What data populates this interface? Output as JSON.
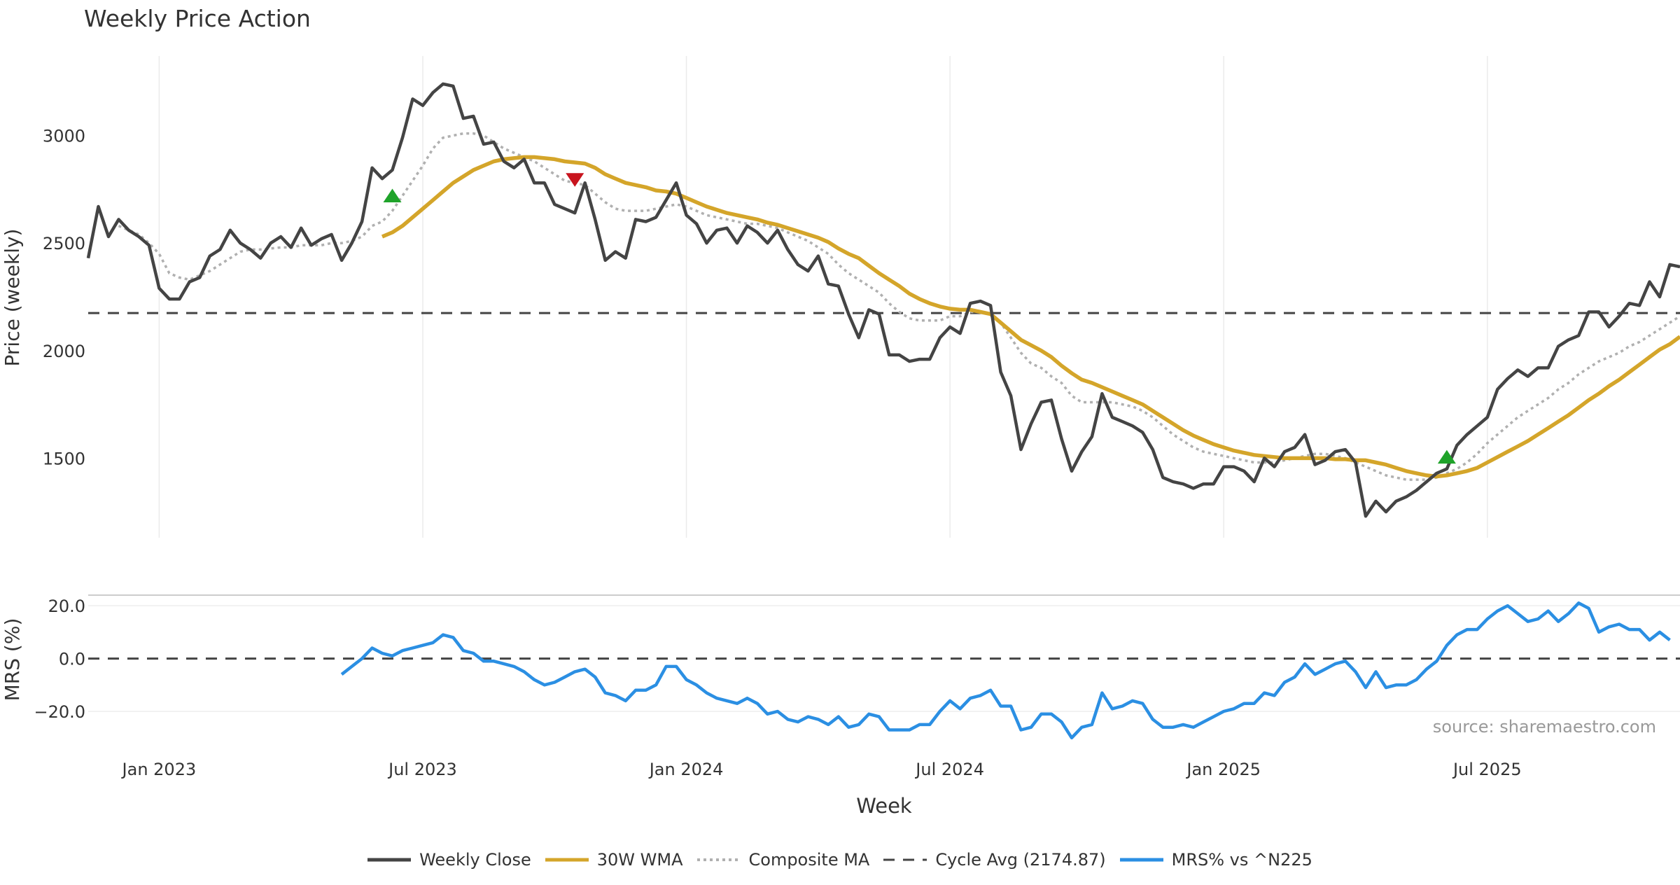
{
  "chart_data": [
    {
      "type": "line",
      "title": "Weekly Price Action",
      "xlabel": "",
      "ylabel": "Price (weekly)",
      "ylim": [
        1130,
        3370
      ],
      "yticks": [
        1500,
        2000,
        2500,
        3000
      ],
      "x_start": "2022-11-14",
      "x_step_days": 7,
      "grid": true,
      "series": [
        {
          "name": "Weekly Close",
          "color": "#444444",
          "style": "solid",
          "values": [
            2430,
            2670,
            2530,
            2610,
            2560,
            2530,
            2490,
            2290,
            2240,
            2240,
            2320,
            2340,
            2440,
            2470,
            2560,
            2500,
            2470,
            2430,
            2500,
            2530,
            2480,
            2570,
            2490,
            2520,
            2540,
            2420,
            2500,
            2600,
            2850,
            2800,
            2840,
            2990,
            3170,
            3140,
            3200,
            3240,
            3230,
            3080,
            3090,
            2960,
            2970,
            2880,
            2850,
            2890,
            2780,
            2780,
            2680,
            2660,
            2640,
            2780,
            2610,
            2420,
            2460,
            2430,
            2610,
            2600,
            2620,
            2700,
            2780,
            2630,
            2590,
            2500,
            2560,
            2570,
            2500,
            2580,
            2550,
            2500,
            2560,
            2470,
            2400,
            2370,
            2440,
            2310,
            2300,
            2170,
            2060,
            2190,
            2170,
            1980,
            1980,
            1950,
            1960,
            1960,
            2060,
            2110,
            2080,
            2220,
            2230,
            2210,
            1900,
            1790,
            1540,
            1660,
            1760,
            1770,
            1590,
            1440,
            1530,
            1600,
            1800,
            1690,
            1670,
            1650,
            1620,
            1540,
            1410,
            1390,
            1380,
            1360,
            1380,
            1380,
            1460,
            1460,
            1440,
            1390,
            1500,
            1460,
            1530,
            1550,
            1610,
            1470,
            1490,
            1530,
            1540,
            1480,
            1230,
            1300,
            1250,
            1300,
            1320,
            1350,
            1390,
            1430,
            1450,
            1560,
            1610,
            1650,
            1690,
            1820,
            1870,
            1910,
            1880,
            1920,
            1920,
            2020,
            2050,
            2070,
            2180,
            2180,
            2110,
            2160,
            2220,
            2210,
            2320,
            2250,
            2400,
            2390
          ]
        },
        {
          "name": "30W WMA",
          "color": "#d4a52a",
          "style": "solid",
          "values": [
            null,
            null,
            null,
            null,
            null,
            null,
            null,
            null,
            null,
            null,
            null,
            null,
            null,
            null,
            null,
            null,
            null,
            null,
            null,
            null,
            null,
            null,
            null,
            null,
            null,
            null,
            null,
            null,
            null,
            2530,
            2550,
            2580,
            2620,
            2660,
            2700,
            2740,
            2780,
            2810,
            2840,
            2860,
            2880,
            2890,
            2895,
            2900,
            2900,
            2895,
            2890,
            2880,
            2875,
            2870,
            2850,
            2820,
            2800,
            2780,
            2770,
            2760,
            2745,
            2740,
            2730,
            2710,
            2690,
            2670,
            2655,
            2640,
            2630,
            2620,
            2610,
            2595,
            2585,
            2570,
            2555,
            2540,
            2525,
            2505,
            2475,
            2450,
            2430,
            2395,
            2360,
            2330,
            2300,
            2265,
            2240,
            2220,
            2205,
            2195,
            2190,
            2190,
            2180,
            2170,
            2130,
            2090,
            2050,
            2025,
            2000,
            1970,
            1930,
            1895,
            1865,
            1850,
            1830,
            1810,
            1790,
            1770,
            1750,
            1720,
            1690,
            1660,
            1630,
            1605,
            1585,
            1565,
            1550,
            1535,
            1525,
            1515,
            1510,
            1505,
            1500,
            1500,
            1500,
            1500,
            1500,
            1495,
            1495,
            1490,
            1490,
            1480,
            1470,
            1455,
            1440,
            1430,
            1420,
            1415,
            1420,
            1430,
            1440,
            1455,
            1480,
            1505,
            1530,
            1555,
            1580,
            1610,
            1640,
            1670,
            1700,
            1735,
            1770,
            1800,
            1835,
            1865,
            1900,
            1935,
            1970,
            2005,
            2030,
            2065
          ]
        },
        {
          "name": "Composite MA",
          "color": "#b0b0b0",
          "style": "dotted",
          "values": [
            null,
            null,
            null,
            2580,
            2560,
            2540,
            2500,
            2450,
            2360,
            2340,
            2330,
            2350,
            2370,
            2400,
            2430,
            2460,
            2470,
            2470,
            2475,
            2480,
            2480,
            2490,
            2490,
            2490,
            2500,
            2500,
            2510,
            2530,
            2580,
            2600,
            2650,
            2720,
            2790,
            2860,
            2940,
            2990,
            3000,
            3010,
            3010,
            3000,
            2970,
            2940,
            2920,
            2900,
            2880,
            2850,
            2820,
            2790,
            2780,
            2770,
            2730,
            2690,
            2660,
            2650,
            2650,
            2650,
            2660,
            2670,
            2680,
            2670,
            2650,
            2630,
            2620,
            2610,
            2600,
            2590,
            2590,
            2580,
            2570,
            2550,
            2530,
            2510,
            2480,
            2450,
            2400,
            2360,
            2330,
            2300,
            2270,
            2220,
            2180,
            2150,
            2140,
            2140,
            2140,
            2160,
            2160,
            2180,
            2180,
            2170,
            2130,
            2060,
            1990,
            1940,
            1920,
            1880,
            1850,
            1790,
            1760,
            1760,
            1760,
            1760,
            1750,
            1740,
            1720,
            1690,
            1650,
            1610,
            1580,
            1550,
            1530,
            1520,
            1510,
            1500,
            1490,
            1480,
            1480,
            1480,
            1490,
            1500,
            1510,
            1520,
            1520,
            1510,
            1500,
            1480,
            1460,
            1440,
            1420,
            1410,
            1400,
            1400,
            1400,
            1410,
            1430,
            1450,
            1480,
            1520,
            1570,
            1610,
            1650,
            1690,
            1720,
            1750,
            1780,
            1820,
            1850,
            1890,
            1920,
            1950,
            1970,
            1990,
            2020,
            2040,
            2070,
            2100,
            2130,
            2160
          ]
        },
        {
          "name": "Cycle Avg (2174.87)",
          "color": "#444444",
          "style": "dashed",
          "constant": 2174.87
        }
      ],
      "markers": [
        {
          "type": "buy",
          "index": 30,
          "value": 2715,
          "color": "#1fa32a"
        },
        {
          "type": "sell",
          "index": 48,
          "value": 2800,
          "color": "#c8141e"
        },
        {
          "type": "buy",
          "index": 134,
          "value": 1500,
          "color": "#1fa32a"
        }
      ]
    },
    {
      "type": "line",
      "title": "",
      "xlabel": "Week",
      "ylabel": "MRS (%)",
      "ylim": [
        -29,
        24
      ],
      "yticks": [
        -20.0,
        0.0,
        20.0
      ],
      "ytick_labels": [
        "−20.0",
        "0.0",
        "20.0"
      ],
      "xticks": [
        "2023-01-02",
        "2023-07-03",
        "2024-01-01",
        "2024-07-01",
        "2025-01-06",
        "2025-07-07"
      ],
      "xtick_labels": [
        "Jan 2023",
        "Jul 2023",
        "Jan 2024",
        "Jul 2024",
        "Jan 2025",
        "Jul 2025"
      ],
      "annotation": "source: sharemaestro.com",
      "series": [
        {
          "name": "MRS% vs ^N225",
          "color": "#2b8fe3",
          "style": "solid",
          "start_index": 25,
          "values": [
            -6,
            -3,
            0,
            4,
            2,
            1,
            3,
            4,
            5,
            6,
            9,
            8,
            3,
            2,
            -1,
            -1,
            -2,
            -3,
            -5,
            -8,
            -10,
            -9,
            -7,
            -5,
            -4,
            -7,
            -13,
            -14,
            -16,
            -12,
            -12,
            -10,
            -3,
            -3,
            -8,
            -10,
            -13,
            -15,
            -16,
            -17,
            -15,
            -17,
            -21,
            -20,
            -23,
            -24,
            -22,
            -23,
            -25,
            -22,
            -26,
            -25,
            -21,
            -22,
            -27,
            -27,
            -27,
            -25,
            -25,
            -20,
            -16,
            -19,
            -15,
            -14,
            -12,
            -18,
            -18,
            -27,
            -26,
            -21,
            -21,
            -24,
            -30,
            -26,
            -25,
            -13,
            -19,
            -18,
            -16,
            -17,
            -23,
            -26,
            -26,
            -25,
            -26,
            -24,
            -22,
            -20,
            -19,
            -17,
            -17,
            -13,
            -14,
            -9,
            -7,
            -2,
            -6,
            -4,
            -2,
            -1,
            -5,
            -11,
            -5,
            -11,
            -10,
            -10,
            -8,
            -4,
            -1,
            5,
            9,
            11,
            11,
            15,
            18,
            20,
            17,
            14,
            15,
            18,
            14,
            17,
            21,
            19,
            10,
            12,
            13,
            11,
            11,
            7,
            10,
            7
          ]
        },
        {
          "name": "",
          "color": "#444444",
          "style": "dashed",
          "constant": 0
        }
      ]
    }
  ],
  "legend": [
    {
      "label": "Weekly Close",
      "color": "#444444",
      "style": "solid"
    },
    {
      "label": "30W WMA",
      "color": "#d4a52a",
      "style": "solid"
    },
    {
      "label": "Composite MA",
      "color": "#b0b0b0",
      "style": "dotted"
    },
    {
      "label": "Cycle Avg (2174.87)",
      "color": "#444444",
      "style": "dashed"
    },
    {
      "label": "MRS% vs ^N225",
      "color": "#2b8fe3",
      "style": "solid"
    }
  ]
}
